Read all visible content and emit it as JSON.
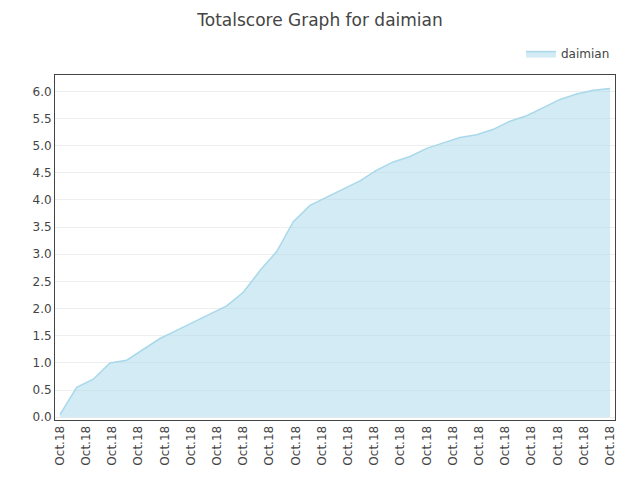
{
  "chart_data": {
    "type": "area",
    "title": "Totalscore Graph for daimian",
    "x": [
      0,
      1,
      2,
      3,
      4,
      5,
      6,
      7,
      8,
      9,
      10,
      11,
      12,
      13,
      14,
      15,
      16,
      17,
      18,
      19,
      20,
      21,
      22,
      23,
      24,
      25,
      26,
      27,
      28,
      29,
      30,
      31,
      32,
      33
    ],
    "series": [
      {
        "name": "daimian",
        "color": "#a8d8ea",
        "values": [
          0.05,
          0.55,
          0.7,
          1.0,
          1.05,
          1.25,
          1.45,
          1.6,
          1.75,
          1.9,
          2.05,
          2.3,
          2.7,
          3.05,
          3.6,
          3.9,
          4.05,
          4.2,
          4.35,
          4.55,
          4.7,
          4.8,
          4.95,
          5.05,
          5.15,
          5.2,
          5.3,
          5.45,
          5.55,
          5.7,
          5.85,
          5.95,
          6.02,
          6.05
        ]
      }
    ],
    "xlim": [
      -0.3,
      33.3
    ],
    "xticks": [
      {
        "value": 0,
        "label": "Oct.18"
      },
      {
        "value": 1.5714285714285714,
        "label": "Oct.18"
      },
      {
        "value": 3.142857142857143,
        "label": "Oct.18"
      },
      {
        "value": 4.714285714285714,
        "label": "Oct.18"
      },
      {
        "value": 6.285714285714286,
        "label": "Oct.18"
      },
      {
        "value": 7.857142857142857,
        "label": "Oct.18"
      },
      {
        "value": 9.428571428571429,
        "label": "Oct.18"
      },
      {
        "value": 11.0,
        "label": "Oct.18"
      },
      {
        "value": 12.571428571428571,
        "label": "Oct.18"
      },
      {
        "value": 14.142857142857142,
        "label": "Oct.18"
      },
      {
        "value": 15.714285714285714,
        "label": "Oct.18"
      },
      {
        "value": 17.285714285714285,
        "label": "Oct.18"
      },
      {
        "value": 18.857142857142858,
        "label": "Oct.18"
      },
      {
        "value": 20.428571428571427,
        "label": "Oct.18"
      },
      {
        "value": 22.0,
        "label": "Oct.18"
      },
      {
        "value": 23.571428571428573,
        "label": "Oct.18"
      },
      {
        "value": 25.142857142857142,
        "label": "Oct.18"
      },
      {
        "value": 26.714285714285715,
        "label": "Oct.18"
      },
      {
        "value": 28.285714285714285,
        "label": "Oct.18"
      },
      {
        "value": 29.857142857142858,
        "label": "Oct.18"
      },
      {
        "value": 31.428571428571427,
        "label": "Oct.18"
      },
      {
        "value": 33.0,
        "label": "Oct.18"
      }
    ],
    "ylim": [
      -0.05,
      6.3
    ],
    "yticks": [
      {
        "value": 0,
        "label": "0.0"
      },
      0.5,
      {
        "value": 1,
        "label": "1.0"
      },
      1.5,
      {
        "value": 2,
        "label": "2.0"
      },
      2.5,
      {
        "value": 3,
        "label": "3.0"
      },
      3.5,
      {
        "value": 4,
        "label": "4.0"
      },
      4.5,
      {
        "value": 5,
        "label": "5.0"
      },
      5.5,
      {
        "value": 6,
        "label": "6.0"
      }
    ],
    "grid": true,
    "legend": "upper right"
  }
}
